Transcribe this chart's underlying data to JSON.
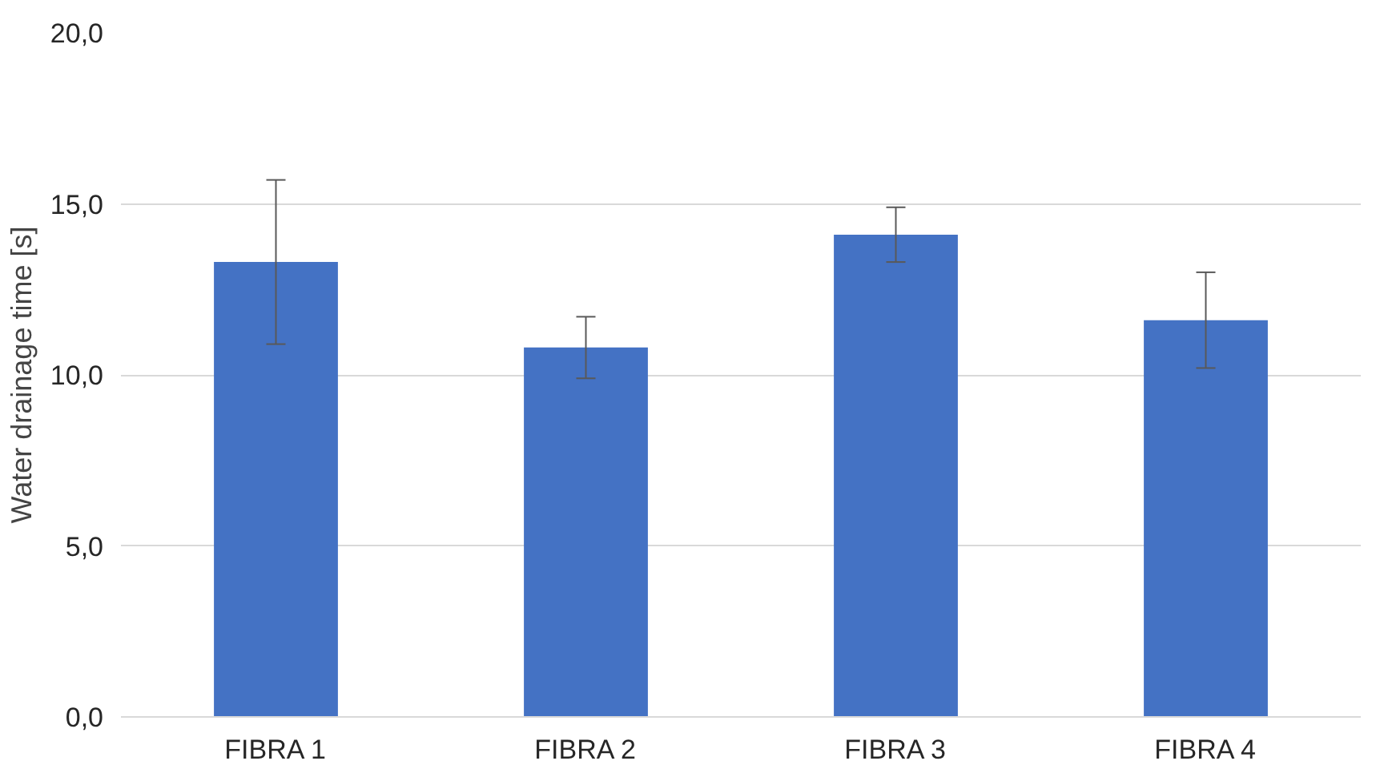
{
  "chart_data": {
    "type": "bar",
    "ylabel": "Water drainage time [s]",
    "categories": [
      "FIBRA 1",
      "FIBRA 2",
      "FIBRA 3",
      "FIBRA 4"
    ],
    "values": [
      13.3,
      10.8,
      14.1,
      11.6
    ],
    "errors": [
      2.4,
      0.9,
      0.8,
      1.4
    ],
    "color": "#4472c4",
    "ylim": [
      0,
      20
    ],
    "yticks": [
      {
        "value": 0,
        "label": "0,0"
      },
      {
        "value": 5,
        "label": "5,0"
      },
      {
        "value": 10,
        "label": "10,0"
      },
      {
        "value": 15,
        "label": "15,0"
      },
      {
        "value": 20,
        "label": "20,0"
      }
    ],
    "grid": "y"
  }
}
